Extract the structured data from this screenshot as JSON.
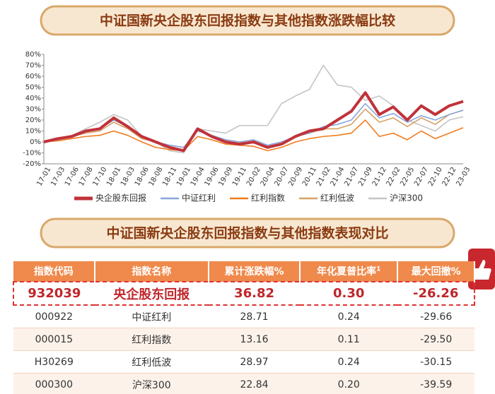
{
  "chart_data": {
    "type": "line",
    "title": "中证国新央企股东回报指数与其他指数涨跌幅比较",
    "categories": [
      "17-01",
      "17-03",
      "17-06",
      "17-08",
      "17-10",
      "18-01",
      "18-03",
      "18-06",
      "18-08",
      "18-11",
      "19-01",
      "19-04",
      "19-06",
      "19-09",
      "19-11",
      "20-02",
      "20-04",
      "20-07",
      "20-09",
      "20-11",
      "21-02",
      "21-04",
      "21-07",
      "21-09",
      "21-12",
      "22-02",
      "22-05",
      "22-07",
      "22-10",
      "22-12",
      "23-03"
    ],
    "series": [
      {
        "name": "央企股东回报",
        "color": "#c0323a",
        "values": [
          0,
          3,
          5,
          10,
          12,
          22,
          14,
          5,
          0,
          -5,
          -8,
          12,
          5,
          0,
          -2,
          0,
          -5,
          -2,
          5,
          10,
          12,
          20,
          28,
          45,
          25,
          32,
          20,
          33,
          25,
          33,
          37
        ]
      },
      {
        "name": "中证红利",
        "color": "#8aa6dc",
        "values": [
          0,
          2,
          5,
          9,
          12,
          20,
          14,
          5,
          0,
          -3,
          -5,
          10,
          6,
          2,
          0,
          2,
          -3,
          0,
          5,
          8,
          14,
          16,
          20,
          35,
          22,
          26,
          18,
          24,
          20,
          25,
          29
        ]
      },
      {
        "name": "红利指数",
        "color": "#f07c1e",
        "values": [
          0,
          1,
          3,
          5,
          6,
          10,
          6,
          0,
          -5,
          -7,
          -8,
          5,
          2,
          -2,
          -3,
          -4,
          -8,
          -5,
          0,
          3,
          5,
          6,
          8,
          20,
          5,
          8,
          2,
          10,
          3,
          8,
          13
        ]
      },
      {
        "name": "红利低波",
        "color": "#d9a066",
        "values": [
          0,
          2,
          5,
          8,
          10,
          18,
          12,
          3,
          0,
          -3,
          -5,
          10,
          6,
          2,
          0,
          -1,
          -4,
          -2,
          5,
          8,
          12,
          12,
          16,
          30,
          18,
          22,
          14,
          22,
          16,
          25,
          29
        ]
      },
      {
        "name": "沪深300",
        "color": "#c4c4c4",
        "values": [
          0,
          3,
          6,
          12,
          18,
          25,
          20,
          5,
          0,
          -8,
          -10,
          12,
          10,
          8,
          15,
          15,
          15,
          35,
          42,
          48,
          70,
          52,
          50,
          38,
          42,
          33,
          20,
          15,
          10,
          20,
          23
        ]
      }
    ],
    "ylim": [
      -20,
      80
    ],
    "yticks": [
      {
        "value": -20,
        "label": "-20%"
      },
      {
        "value": -10,
        "label": "-10%"
      },
      {
        "value": 0,
        "label": "0%"
      },
      {
        "value": 10,
        "label": "10%"
      },
      {
        "value": 20,
        "label": "20%"
      },
      {
        "value": 30,
        "label": "30%"
      },
      {
        "value": 40,
        "label": "40%"
      },
      {
        "value": 50,
        "label": "50%"
      },
      {
        "value": 60,
        "label": "60%"
      },
      {
        "value": 70,
        "label": "70%"
      },
      {
        "value": 80,
        "label": "80%"
      }
    ],
    "grid": false
  },
  "table": {
    "title": "中证国新央企股东回报指数与其他指数表现对比",
    "headers": [
      "指数代码",
      "指数名称",
      "累计涨跌幅%",
      "年化夏普比率",
      "最大回撤%"
    ],
    "header_note": "1",
    "rows": [
      [
        "932039",
        "央企股东回报",
        "36.82",
        "0.30",
        "-26.26"
      ],
      [
        "000922",
        "中证红利",
        "28.71",
        "0.24",
        "-29.66"
      ],
      [
        "000015",
        "红利指数",
        "13.16",
        "0.11",
        "-29.50"
      ],
      [
        "H30269",
        "红利低波",
        "28.97",
        "0.24",
        "-30.15"
      ],
      [
        "000300",
        "沪深300",
        "22.84",
        "0.20",
        "-39.59"
      ]
    ]
  }
}
